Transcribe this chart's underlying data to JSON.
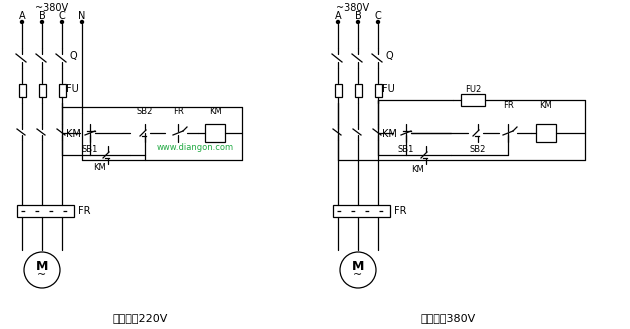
{
  "bg_color": "#ffffff",
  "line_color": "#000000",
  "fig_width": 6.3,
  "fig_height": 3.29,
  "title_left": "控制电压220V",
  "title_right": "控制电压380V",
  "watermark": "www.diangon.com",
  "watermark_color": "#22aa44",
  "left_phases": [
    "A",
    "B",
    "C",
    "N"
  ],
  "right_phases": [
    "A",
    "B",
    "C"
  ],
  "voltage_label": "~380V"
}
